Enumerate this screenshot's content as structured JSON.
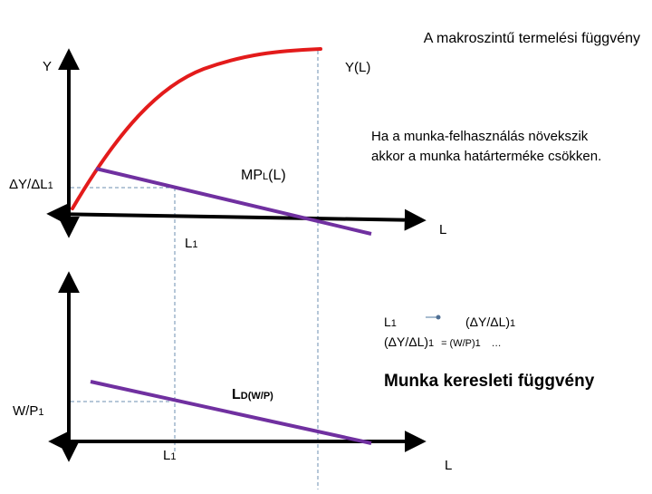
{
  "title": "A makroszintű termelési függvény",
  "top_graph": {
    "y_axis_label": "Y",
    "curve_label": "Y(L)",
    "mpl_label": {
      "main": "MP",
      "sub": "L",
      "tail": "(L)"
    },
    "dy_dl_label": {
      "main": "ΔY/ΔL",
      "sub": "1"
    },
    "x_axis_label": "L",
    "l1_label": {
      "main": "L",
      "sub": "1"
    },
    "note_line1": "Ha a munka-felhasználás növekszik",
    "note_line2": "akkor a munka határterméke csökken."
  },
  "middle_text": {
    "line1_left": {
      "main": "L",
      "sub": "1"
    },
    "line1_right": {
      "main": "(ΔY/ΔL)",
      "sub": "1"
    },
    "line2": {
      "main": "(ΔY/ΔL)",
      "sub": "1",
      "eq": "= (W/P)",
      "sub2": "1",
      "dots": "…"
    }
  },
  "bottom_graph": {
    "demand_label": {
      "main": "L",
      "sub": "D(W/P)"
    },
    "wp_label": {
      "main": "W/P",
      "sub": "1"
    },
    "l1_label": {
      "main": "L",
      "sub": "1"
    },
    "x_axis_label": "L",
    "heading": "Munka keresleti függvény"
  },
  "colors": {
    "production_curve": "#e31b1b",
    "mpl_line": "#7030a0",
    "axis": "#000000",
    "guide": "#6d8fb0",
    "arrow_dot": "#4f6f94"
  }
}
